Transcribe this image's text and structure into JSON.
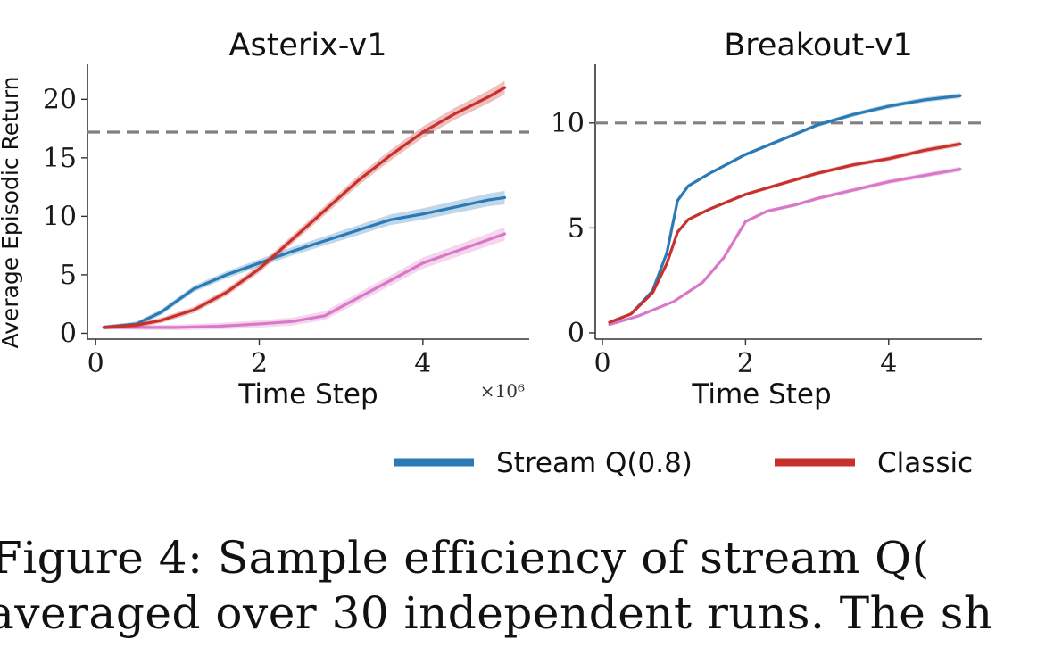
{
  "chart_data": [
    {
      "type": "line",
      "title": "Asterix-v1",
      "xlabel": "Time Step",
      "ylabel": "Average Episodic Return",
      "x_multiplier_label": "×10⁶",
      "xlim": [
        -0.1,
        5.3
      ],
      "ylim": [
        -0.5,
        23
      ],
      "xticks": [
        "0",
        "2",
        "4"
      ],
      "yticks": [
        "0",
        "5",
        "10",
        "15",
        "20"
      ],
      "reference_line": 17.2,
      "grid": false,
      "series": [
        {
          "legend_key": "stream_q",
          "color": "#2a7ab5",
          "x": [
            0.1,
            0.5,
            0.8,
            1.2,
            1.6,
            2.0,
            2.4,
            2.8,
            3.2,
            3.6,
            4.0,
            4.4,
            4.8,
            5.0
          ],
          "y": [
            0.5,
            0.8,
            1.8,
            3.8,
            5.0,
            6.0,
            7.0,
            7.9,
            8.8,
            9.7,
            10.2,
            10.8,
            11.4,
            11.6
          ]
        },
        {
          "legend_key": "classic",
          "color": "#c8302c",
          "x": [
            0.1,
            0.5,
            0.8,
            1.2,
            1.6,
            2.0,
            2.4,
            2.8,
            3.2,
            3.6,
            4.0,
            4.4,
            4.8,
            5.0
          ],
          "y": [
            0.5,
            0.7,
            1.1,
            2.0,
            3.5,
            5.5,
            8.0,
            10.5,
            13.0,
            15.2,
            17.2,
            18.8,
            20.2,
            21.0
          ]
        },
        {
          "legend_key": "third",
          "color": "#d977c8",
          "x": [
            0.1,
            0.5,
            1.0,
            1.5,
            2.0,
            2.4,
            2.8,
            3.2,
            3.6,
            4.0,
            4.4,
            4.8,
            5.0
          ],
          "y": [
            0.5,
            0.5,
            0.5,
            0.6,
            0.8,
            1.0,
            1.5,
            3.0,
            4.5,
            6.0,
            7.0,
            8.0,
            8.5
          ]
        }
      ]
    },
    {
      "type": "line",
      "title": "Breakout-v1",
      "xlabel": "Time Step",
      "xlim": [
        -0.1,
        5.3
      ],
      "ylim": [
        -0.3,
        12.8
      ],
      "xticks": [
        "0",
        "2",
        "4"
      ],
      "yticks": [
        "0",
        "5",
        "10"
      ],
      "reference_line": 10.0,
      "grid": false,
      "series": [
        {
          "legend_key": "stream_q",
          "color": "#2a7ab5",
          "x": [
            0.1,
            0.4,
            0.7,
            0.9,
            1.05,
            1.2,
            1.5,
            2.0,
            2.5,
            3.0,
            3.5,
            4.0,
            4.5,
            5.0
          ],
          "y": [
            0.5,
            0.9,
            2.0,
            3.8,
            6.3,
            7.0,
            7.6,
            8.5,
            9.2,
            9.9,
            10.4,
            10.8,
            11.1,
            11.3
          ]
        },
        {
          "legend_key": "classic",
          "color": "#c8302c",
          "x": [
            0.1,
            0.4,
            0.7,
            0.9,
            1.05,
            1.2,
            1.5,
            2.0,
            2.5,
            3.0,
            3.5,
            4.0,
            4.5,
            5.0
          ],
          "y": [
            0.5,
            0.9,
            1.9,
            3.3,
            4.8,
            5.4,
            5.9,
            6.6,
            7.1,
            7.6,
            8.0,
            8.3,
            8.7,
            9.0
          ]
        },
        {
          "legend_key": "third",
          "color": "#d977c8",
          "x": [
            0.1,
            0.5,
            1.0,
            1.4,
            1.7,
            2.0,
            2.3,
            2.7,
            3.0,
            3.5,
            4.0,
            4.5,
            5.0
          ],
          "y": [
            0.4,
            0.8,
            1.5,
            2.4,
            3.6,
            5.3,
            5.8,
            6.1,
            6.4,
            6.8,
            7.2,
            7.5,
            7.8
          ]
        }
      ]
    }
  ],
  "legend": [
    {
      "key": "stream_q",
      "label": "Stream Q(0.8)",
      "color": "#2a7ab5"
    },
    {
      "key": "classic",
      "label": "Classic",
      "color": "#c8302c"
    }
  ],
  "caption": {
    "line1": "Figure 4:  Sample efficiency of stream Q(",
    "line2": "averaged over 30 independent runs.  The sh"
  }
}
